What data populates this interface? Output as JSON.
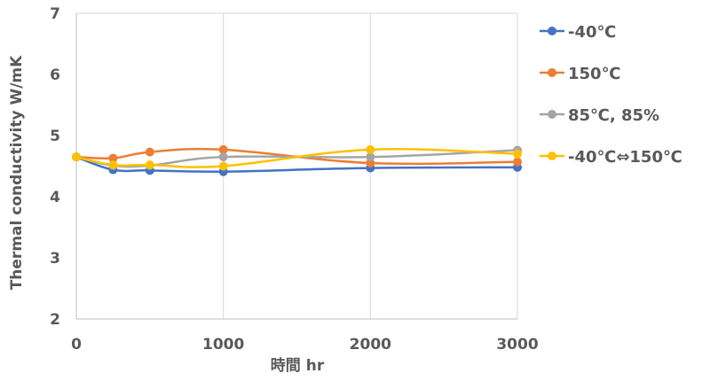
{
  "chart_data": {
    "type": "line",
    "ylabel": "Thermal conductivity W/mK",
    "xlabel": "時間 hr",
    "xlim": [
      0,
      3000
    ],
    "ylim": [
      2,
      7
    ],
    "xticks": [
      "0",
      "1000",
      "2000",
      "3000"
    ],
    "yticks": [
      "2",
      "3",
      "4",
      "5",
      "6",
      "7"
    ],
    "grid": "vertical",
    "legend": "right",
    "series": [
      {
        "name": "-40℃",
        "color": "#4472C4",
        "points": [
          [
            0,
            4.65
          ],
          [
            250,
            4.44
          ],
          [
            500,
            4.43
          ],
          [
            1000,
            4.41
          ],
          [
            2000,
            4.47
          ],
          [
            3000,
            4.48
          ]
        ]
      },
      {
        "name": "150℃",
        "color": "#ED7D31",
        "points": [
          [
            0,
            4.65
          ],
          [
            250,
            4.63
          ],
          [
            500,
            4.73
          ],
          [
            1000,
            4.77
          ],
          [
            2000,
            4.55
          ],
          [
            3000,
            4.57
          ]
        ]
      },
      {
        "name": "85℃, 85%",
        "color": "#A5A5A5",
        "points": [
          [
            0,
            4.65
          ],
          [
            250,
            4.51
          ],
          [
            500,
            4.51
          ],
          [
            1000,
            4.65
          ],
          [
            2000,
            4.65
          ],
          [
            3000,
            4.76
          ]
        ]
      },
      {
        "name": "-40℃⇔150℃",
        "color": "#FFC000",
        "points": [
          [
            0,
            4.65
          ],
          [
            250,
            4.52
          ],
          [
            500,
            4.52
          ],
          [
            1000,
            4.5
          ],
          [
            2000,
            4.77
          ],
          [
            3000,
            4.7
          ]
        ]
      }
    ]
  }
}
